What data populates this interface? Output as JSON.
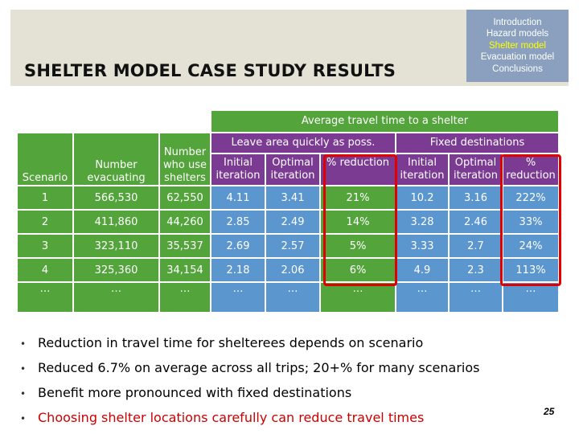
{
  "title": "SHELTER MODEL CASE STUDY RESULTS",
  "nav": [
    "Introduction",
    "Hazard models",
    "Shelter model",
    "Evacuation model",
    "Conclusions"
  ],
  "nav_current": "Shelter model",
  "table": {
    "top_header": "Average travel time to a shelter",
    "group_leave": "Leave area quickly as poss.",
    "group_fixed": "Fixed destinations",
    "col_scenario": "Scenario",
    "col_evacuating": [
      "Number",
      "evacuating"
    ],
    "col_shelters": [
      "Number",
      "who use",
      "shelters"
    ],
    "sub_initial": [
      "Initial",
      "iteration"
    ],
    "sub_optimal": [
      "Optimal",
      "iteration"
    ],
    "sub_reduction": "% reduction",
    "sub_fixed_initial": [
      "Initial",
      "iteration"
    ],
    "sub_fixed_optimal": [
      "Optimal",
      "iteration"
    ],
    "sub_fixed_reduction": [
      "%",
      "reduction"
    ],
    "rows": [
      [
        "1",
        "566,530",
        "62,550",
        "4.11",
        "3.41",
        "21%",
        "10.2",
        "3.16",
        "222%"
      ],
      [
        "2",
        "411,860",
        "44,260",
        "2.85",
        "2.49",
        "14%",
        "3.28",
        "2.46",
        "33%"
      ],
      [
        "3",
        "323,110",
        "35,537",
        "2.69",
        "2.57",
        "5%",
        "3.33",
        "2.7",
        "24%"
      ],
      [
        "4",
        "325,360",
        "34,154",
        "2.18",
        "2.06",
        "6%",
        "4.9",
        "2.3",
        "113%"
      ],
      [
        "…",
        "…",
        "…",
        "…",
        "…",
        "…",
        "…",
        "…",
        "…"
      ]
    ]
  },
  "bullets": [
    "Reduction in travel time for shelterees depends on scenario",
    "Reduced 6.7% on average across all trips; 20+% for many scenarios",
    "Benefit more pronounced with fixed destinations",
    "Choosing shelter locations carefully can reduce travel times"
  ],
  "page_number": "25",
  "colors": {
    "header_band": "#e3e2d5",
    "nav_box": "#8aa0be",
    "nav_current": "#ffff00",
    "green": "#54a43c",
    "blue": "#5b96cf",
    "purple": "#7b3b93",
    "highlight": "#e00000",
    "last_bullet": "#cc0000"
  }
}
